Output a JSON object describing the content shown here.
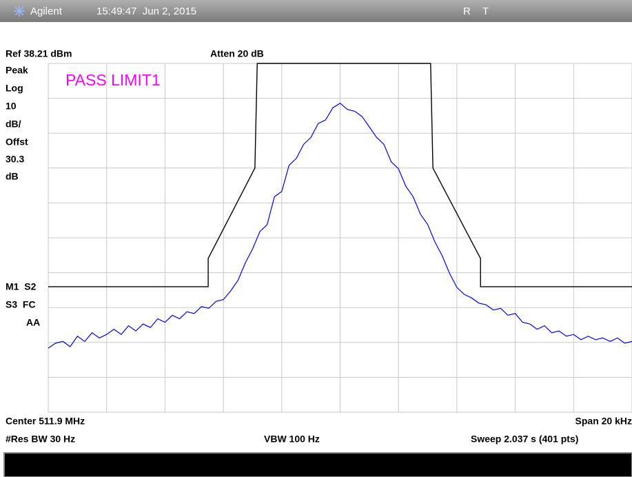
{
  "chart_data": {
    "type": "line",
    "header": {
      "brand": "Agilent",
      "datetime": "15:49:47  Jun 2, 2015",
      "flags": [
        "R",
        "T"
      ]
    },
    "ref_label": "Ref 38.21 dBm",
    "atten_label": "Atten 20 dB",
    "left_labels": [
      "Peak",
      "Log",
      "10",
      "dB/",
      "Offst",
      "30.3",
      "dB"
    ],
    "marker_labels": [
      "M1  S2",
      "S3  FC",
      "AA"
    ],
    "annotation": "PASS LIMIT1",
    "footer": {
      "center": "Center 511.9 MHz",
      "span": "Span 20 kHz",
      "rbw": "#Res BW 30 Hz",
      "vbw": "VBW 100 Hz",
      "sweep": "Sweep 2.037 s (401 pts)"
    },
    "xlim": [
      511.89,
      511.91
    ],
    "ylim": [
      -61.79,
      38.21
    ],
    "grid": true,
    "series": [
      {
        "color": "#0000ff",
        "x": [
          511.89,
          511.89025,
          511.8905,
          511.89075,
          511.891,
          511.89125,
          511.8915,
          511.89175,
          511.892,
          511.89225,
          511.8925,
          511.89275,
          511.893,
          511.89325,
          511.8935,
          511.89375,
          511.894,
          511.89425,
          511.8945,
          511.89475,
          511.895,
          511.89525,
          511.8955,
          511.89575,
          511.896,
          511.89625,
          511.8965,
          511.89675,
          511.897,
          511.89725,
          511.8975,
          511.89775,
          511.898,
          511.89825,
          511.8985,
          511.89875,
          511.899,
          511.89925,
          511.8995,
          511.89975,
          511.9,
          511.90025,
          511.9005,
          511.90075,
          511.901,
          511.90125,
          511.9015,
          511.90175,
          511.902,
          511.90225,
          511.9025,
          511.90275,
          511.903,
          511.90325,
          511.9035,
          511.90375,
          511.904,
          511.90425,
          511.9045,
          511.90475,
          511.905,
          511.90525,
          511.9055,
          511.90575,
          511.906,
          511.90625,
          511.9065,
          511.90675,
          511.907,
          511.90725,
          511.9075,
          511.90775,
          511.908,
          511.90825,
          511.9085,
          511.90875,
          511.909,
          511.90925,
          511.9095,
          511.90975,
          511.91
        ],
        "values": [
          -43.4,
          -42,
          -41.5,
          -43,
          -40,
          -41.5,
          -39,
          -40.5,
          -39.5,
          -38,
          -39.5,
          -37,
          -38.5,
          -36.5,
          -37.5,
          -35,
          -36,
          -34,
          -35,
          -33,
          -33.5,
          -31.5,
          -32,
          -30,
          -29.5,
          -27,
          -24,
          -19,
          -15,
          -10,
          -8,
          0,
          1.5,
          9,
          11,
          15,
          17,
          21,
          22,
          25.5,
          26.8,
          25,
          24.5,
          23,
          20,
          17,
          15,
          10,
          8,
          3,
          0,
          -5,
          -8,
          -13,
          -17,
          -22,
          -26,
          -28,
          -29,
          -30.5,
          -31,
          -32.5,
          -32,
          -34,
          -33.5,
          -36,
          -36.5,
          -38,
          -37,
          -39,
          -38.5,
          -40,
          -39.5,
          -41,
          -40,
          -41,
          -40.5,
          -41.5,
          -40.5,
          -42,
          -41.5
        ]
      },
      {
        "color": "#000000",
        "x": [
          511.89,
          511.89548,
          511.89548,
          511.89708,
          511.89716,
          511.9031,
          511.90318,
          511.90481,
          511.90481,
          511.91
        ],
        "values": [
          -25.8,
          -25.8,
          -17.7,
          8.2,
          38.21,
          38.21,
          8.2,
          -17.7,
          -25.8,
          -25.8
        ]
      }
    ]
  }
}
